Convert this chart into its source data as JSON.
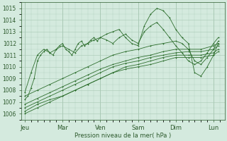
{
  "background_color": "#d4eade",
  "grid_color": "#a8c8b4",
  "line_color": "#2d6e2d",
  "xlabel": "Pression niveau de la mer( hPa )",
  "xlabel_color": "#2d5a2d",
  "tick_label_color": "#2d5a2d",
  "ylim": [
    1005.5,
    1015.5
  ],
  "yticks": [
    1006,
    1007,
    1008,
    1009,
    1010,
    1011,
    1012,
    1013,
    1014,
    1015
  ],
  "xtick_labels": [
    "Jeu",
    "Mar",
    "Ven",
    "Sam",
    "Dim",
    "Lun"
  ],
  "xtick_positions": [
    0,
    24,
    48,
    72,
    96,
    120
  ],
  "xlim": [
    -2,
    127
  ],
  "series": [
    {
      "x": [
        0,
        2,
        4,
        6,
        8,
        10,
        12,
        14,
        16,
        18,
        20,
        22,
        24,
        26,
        28,
        30,
        32,
        34,
        36,
        38,
        40,
        42,
        44,
        46,
        48,
        52,
        56,
        60,
        64,
        68,
        72,
        76,
        80,
        84,
        88,
        92,
        96,
        100,
        104,
        108,
        112,
        116,
        120,
        123
      ],
      "y": [
        1007.2,
        1007.5,
        1008.2,
        1009.0,
        1010.5,
        1011.0,
        1011.3,
        1011.5,
        1011.2,
        1011.0,
        1011.5,
        1011.8,
        1012.0,
        1011.5,
        1011.3,
        1011.0,
        1011.5,
        1012.0,
        1012.2,
        1011.8,
        1012.0,
        1012.3,
        1012.5,
        1012.2,
        1012.5,
        1012.8,
        1013.0,
        1013.2,
        1012.5,
        1012.0,
        1011.8,
        1013.5,
        1014.5,
        1015.0,
        1014.8,
        1014.2,
        1013.2,
        1012.5,
        1012.0,
        1009.5,
        1009.2,
        1010.0,
        1011.0,
        1012.0
      ]
    },
    {
      "x": [
        0,
        4,
        8,
        12,
        16,
        20,
        24,
        28,
        32,
        36,
        40,
        44,
        48,
        52,
        56,
        60,
        64,
        68,
        72,
        76,
        80,
        84,
        88,
        92,
        96,
        100,
        104,
        108,
        112,
        116,
        120,
        123
      ],
      "y": [
        1007.8,
        1009.5,
        1011.0,
        1011.5,
        1011.2,
        1011.5,
        1011.8,
        1011.5,
        1011.2,
        1011.8,
        1012.0,
        1012.3,
        1012.5,
        1012.3,
        1012.0,
        1012.5,
        1012.8,
        1012.3,
        1012.0,
        1013.0,
        1013.5,
        1013.8,
        1013.2,
        1012.5,
        1011.8,
        1011.2,
        1010.5,
        1010.2,
        1010.5,
        1011.2,
        1012.0,
        1012.5
      ]
    },
    {
      "x": [
        0,
        8,
        16,
        24,
        32,
        40,
        48,
        56,
        64,
        72,
        80,
        88,
        96,
        104,
        112,
        120,
        123
      ],
      "y": [
        1006.2,
        1006.8,
        1007.2,
        1007.5,
        1008.0,
        1008.5,
        1009.0,
        1009.5,
        1010.0,
        1010.2,
        1010.5,
        1010.8,
        1011.0,
        1011.0,
        1011.0,
        1011.2,
        1011.5
      ]
    },
    {
      "x": [
        0,
        8,
        16,
        24,
        32,
        40,
        48,
        56,
        64,
        72,
        80,
        88,
        96,
        104,
        112,
        120,
        123
      ],
      "y": [
        1006.5,
        1007.0,
        1007.5,
        1008.0,
        1008.5,
        1009.0,
        1009.5,
        1010.0,
        1010.3,
        1010.5,
        1010.8,
        1011.0,
        1011.2,
        1011.3,
        1011.3,
        1011.5,
        1011.8
      ]
    },
    {
      "x": [
        0,
        8,
        16,
        24,
        32,
        40,
        48,
        56,
        64,
        72,
        80,
        88,
        96,
        104,
        112,
        120,
        123
      ],
      "y": [
        1006.8,
        1007.3,
        1007.8,
        1008.3,
        1008.8,
        1009.3,
        1009.8,
        1010.2,
        1010.5,
        1010.8,
        1011.0,
        1011.3,
        1011.5,
        1011.5,
        1011.5,
        1011.8,
        1012.0
      ]
    },
    {
      "x": [
        0,
        8,
        16,
        24,
        32,
        40,
        48,
        56,
        64,
        72,
        80,
        88,
        96,
        104,
        112,
        120,
        123
      ],
      "y": [
        1006.0,
        1006.5,
        1007.0,
        1007.5,
        1008.0,
        1008.5,
        1009.0,
        1009.5,
        1009.8,
        1010.0,
        1010.2,
        1010.5,
        1010.8,
        1010.8,
        1010.8,
        1011.0,
        1011.3
      ]
    },
    {
      "x": [
        0,
        8,
        16,
        24,
        32,
        40,
        48,
        56,
        64,
        72,
        80,
        88,
        96,
        100,
        104,
        108,
        112,
        116,
        120,
        123
      ],
      "y": [
        1007.5,
        1008.0,
        1008.5,
        1009.0,
        1009.5,
        1010.0,
        1010.5,
        1011.0,
        1011.3,
        1011.5,
        1011.8,
        1012.0,
        1012.2,
        1012.0,
        1011.5,
        1010.5,
        1010.2,
        1010.8,
        1011.5,
        1012.2
      ]
    }
  ]
}
